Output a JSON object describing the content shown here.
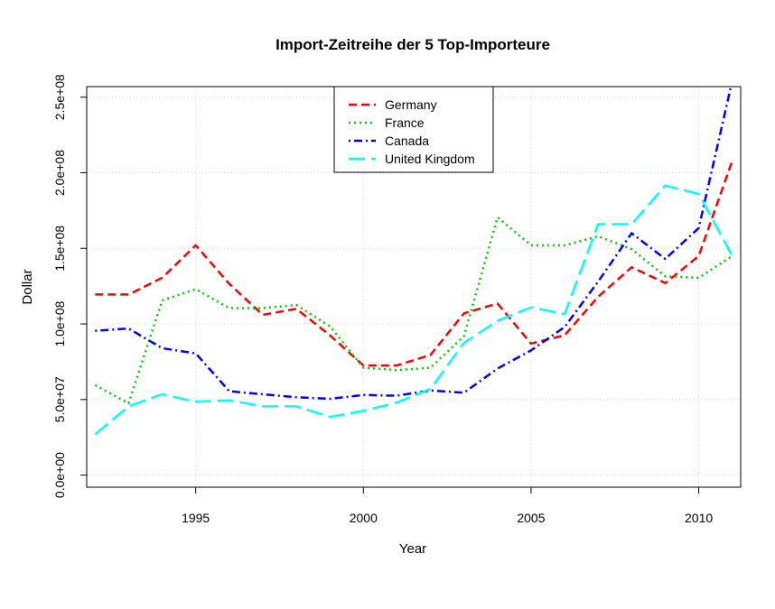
{
  "chart_data": {
    "type": "line",
    "title": "Import-Zeitreihe der 5 Top-Importeure",
    "xlabel": "Year",
    "ylabel": "Dollar",
    "xlim": [
      1991.75,
      2011.25
    ],
    "ylim": [
      -8000000,
      257000000
    ],
    "x_ticks": [
      1995,
      2000,
      2005,
      2010
    ],
    "x_tick_labels": [
      "1995",
      "2000",
      "2005",
      "2010"
    ],
    "y_ticks": [
      0,
      50000000,
      100000000,
      150000000,
      200000000,
      250000000
    ],
    "y_tick_labels": [
      "0.0e+00",
      "5.0e+07",
      "1.0e+08",
      "1.5e+08",
      "2.0e+08",
      "2.5e+08"
    ],
    "grid": true,
    "legend_position": "top-center",
    "x": [
      1992,
      1993,
      1994,
      1995,
      1996,
      1997,
      1998,
      1999,
      2000,
      2001,
      2002,
      2003,
      2004,
      2005,
      2006,
      2007,
      2008,
      2009,
      2010,
      2011
    ],
    "series": [
      {
        "name": "Germany",
        "color": "#ff0000",
        "dash": "dashed",
        "values": [
          119500000,
          119500000,
          130500000,
          152000000,
          126500000,
          106000000,
          110000000,
          92500000,
          72500000,
          72500000,
          79500000,
          107000000,
          113500000,
          87000000,
          92500000,
          118000000,
          137500000,
          127000000,
          145000000,
          208000000
        ]
      },
      {
        "name": "France",
        "color": "#00cd00",
        "dash": "dotted",
        "values": [
          59500000,
          47500000,
          115500000,
          123000000,
          110500000,
          110500000,
          112500000,
          98500000,
          71000000,
          69500000,
          71000000,
          92000000,
          170500000,
          152000000,
          152000000,
          158000000,
          149500000,
          131500000,
          130500000,
          145000000
        ]
      },
      {
        "name": "Canada",
        "color": "#0000ff",
        "dash": "dotdash",
        "values": [
          95500000,
          97000000,
          84000000,
          80500000,
          55500000,
          53500000,
          51500000,
          50500000,
          53000000,
          52500000,
          56000000,
          54500000,
          70500000,
          82500000,
          98000000,
          128000000,
          160000000,
          143000000,
          163500000,
          261000000
        ]
      },
      {
        "name": "United Kingdom",
        "color": "#00ffff",
        "dash": "longdash",
        "values": [
          27000000,
          45500000,
          53500000,
          48500000,
          49500000,
          45500000,
          45500000,
          38500000,
          42500000,
          48000000,
          57000000,
          87500000,
          102000000,
          111000000,
          106500000,
          166000000,
          166000000,
          191500000,
          186000000,
          145000000
        ]
      }
    ]
  }
}
